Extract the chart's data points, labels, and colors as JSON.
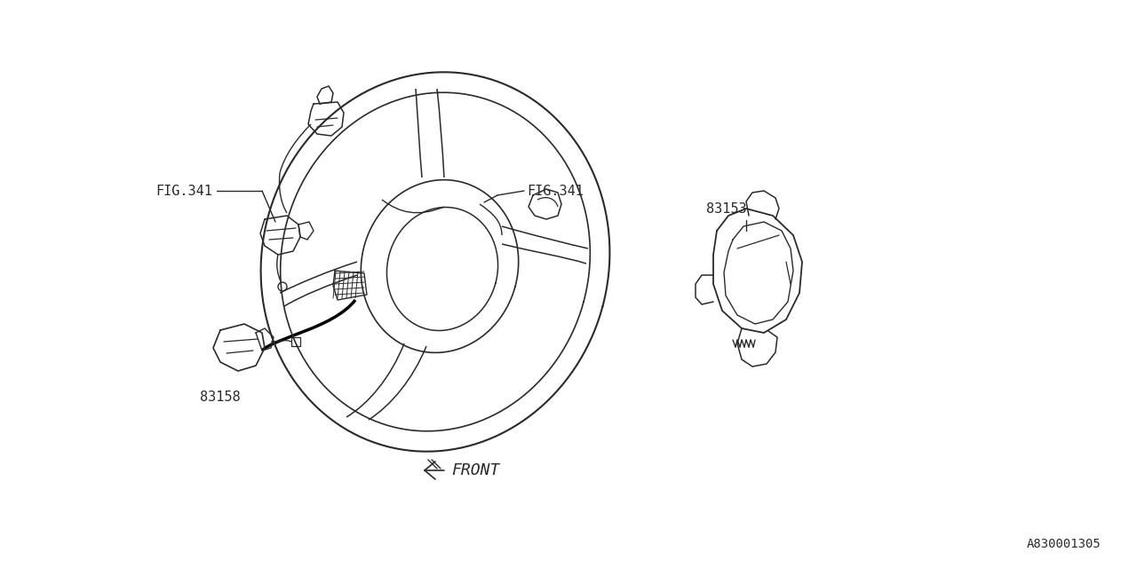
{
  "background_color": "#ffffff",
  "line_color": "#2a2a2a",
  "text_color": "#2a2a2a",
  "diagram_id": "A830001305",
  "figsize": [
    12.8,
    6.4
  ],
  "dpi": 100,
  "labels": {
    "fig341_left": "FIG.341",
    "fig341_right": "FIG.341",
    "part_83153": "83153",
    "part_83158": "83158",
    "front": "FRONT"
  }
}
